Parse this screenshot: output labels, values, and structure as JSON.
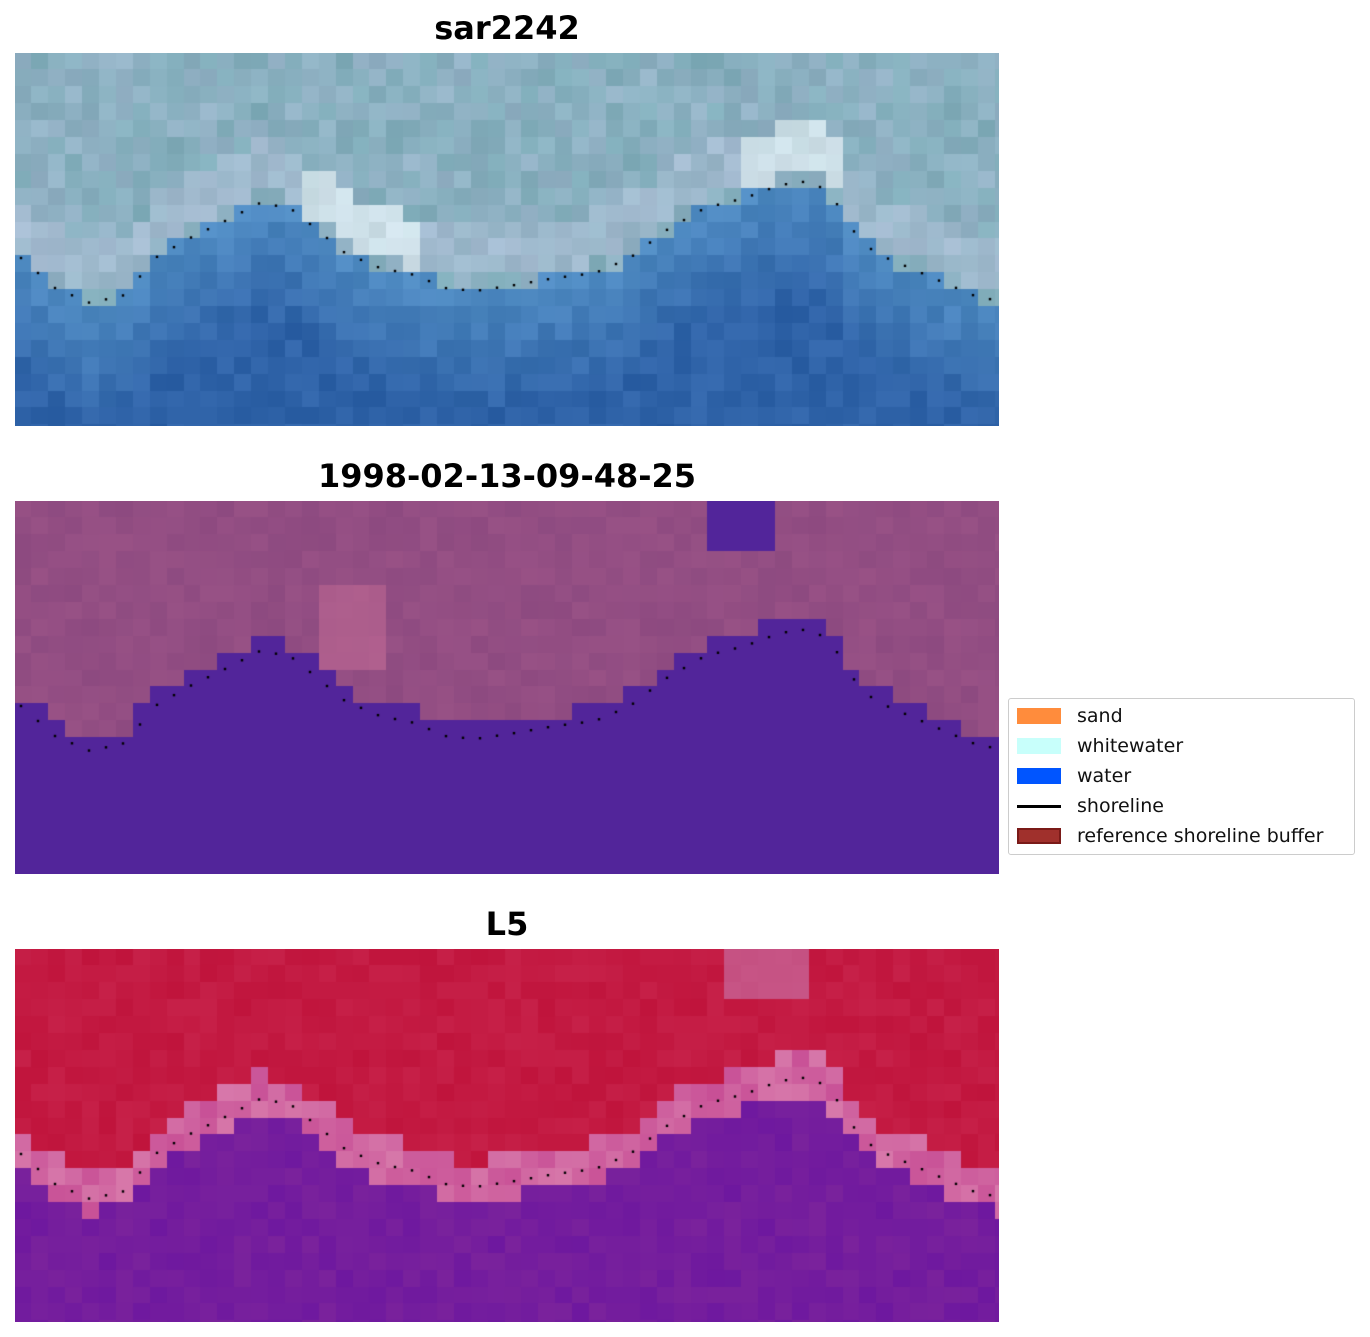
{
  "panels": [
    {
      "title": "sar2242",
      "palette": "rgb"
    },
    {
      "title": "1998-02-13-09-48-25",
      "palette": "classified"
    },
    {
      "title": "L5",
      "palette": "index"
    }
  ],
  "legend": {
    "items": [
      {
        "label": "sand",
        "color": "#ff8c3c",
        "kind": "patch"
      },
      {
        "label": "whitewater",
        "color": "#c8fffb",
        "kind": "patch"
      },
      {
        "label": "water",
        "color": "#0055ff",
        "kind": "patch"
      },
      {
        "label": "shoreline",
        "color": "#000000",
        "kind": "line"
      },
      {
        "label": "reference shoreline buffer",
        "color": "#a0302c",
        "kind": "patch"
      }
    ]
  },
  "colors": {
    "water_class": "#52259a",
    "land_class": "#8d4a80",
    "index_positive": "#c0143c",
    "index_negative": "#7a229c",
    "rgb_sea": "#2f63a8",
    "rgb_land": "#94b2c6"
  }
}
